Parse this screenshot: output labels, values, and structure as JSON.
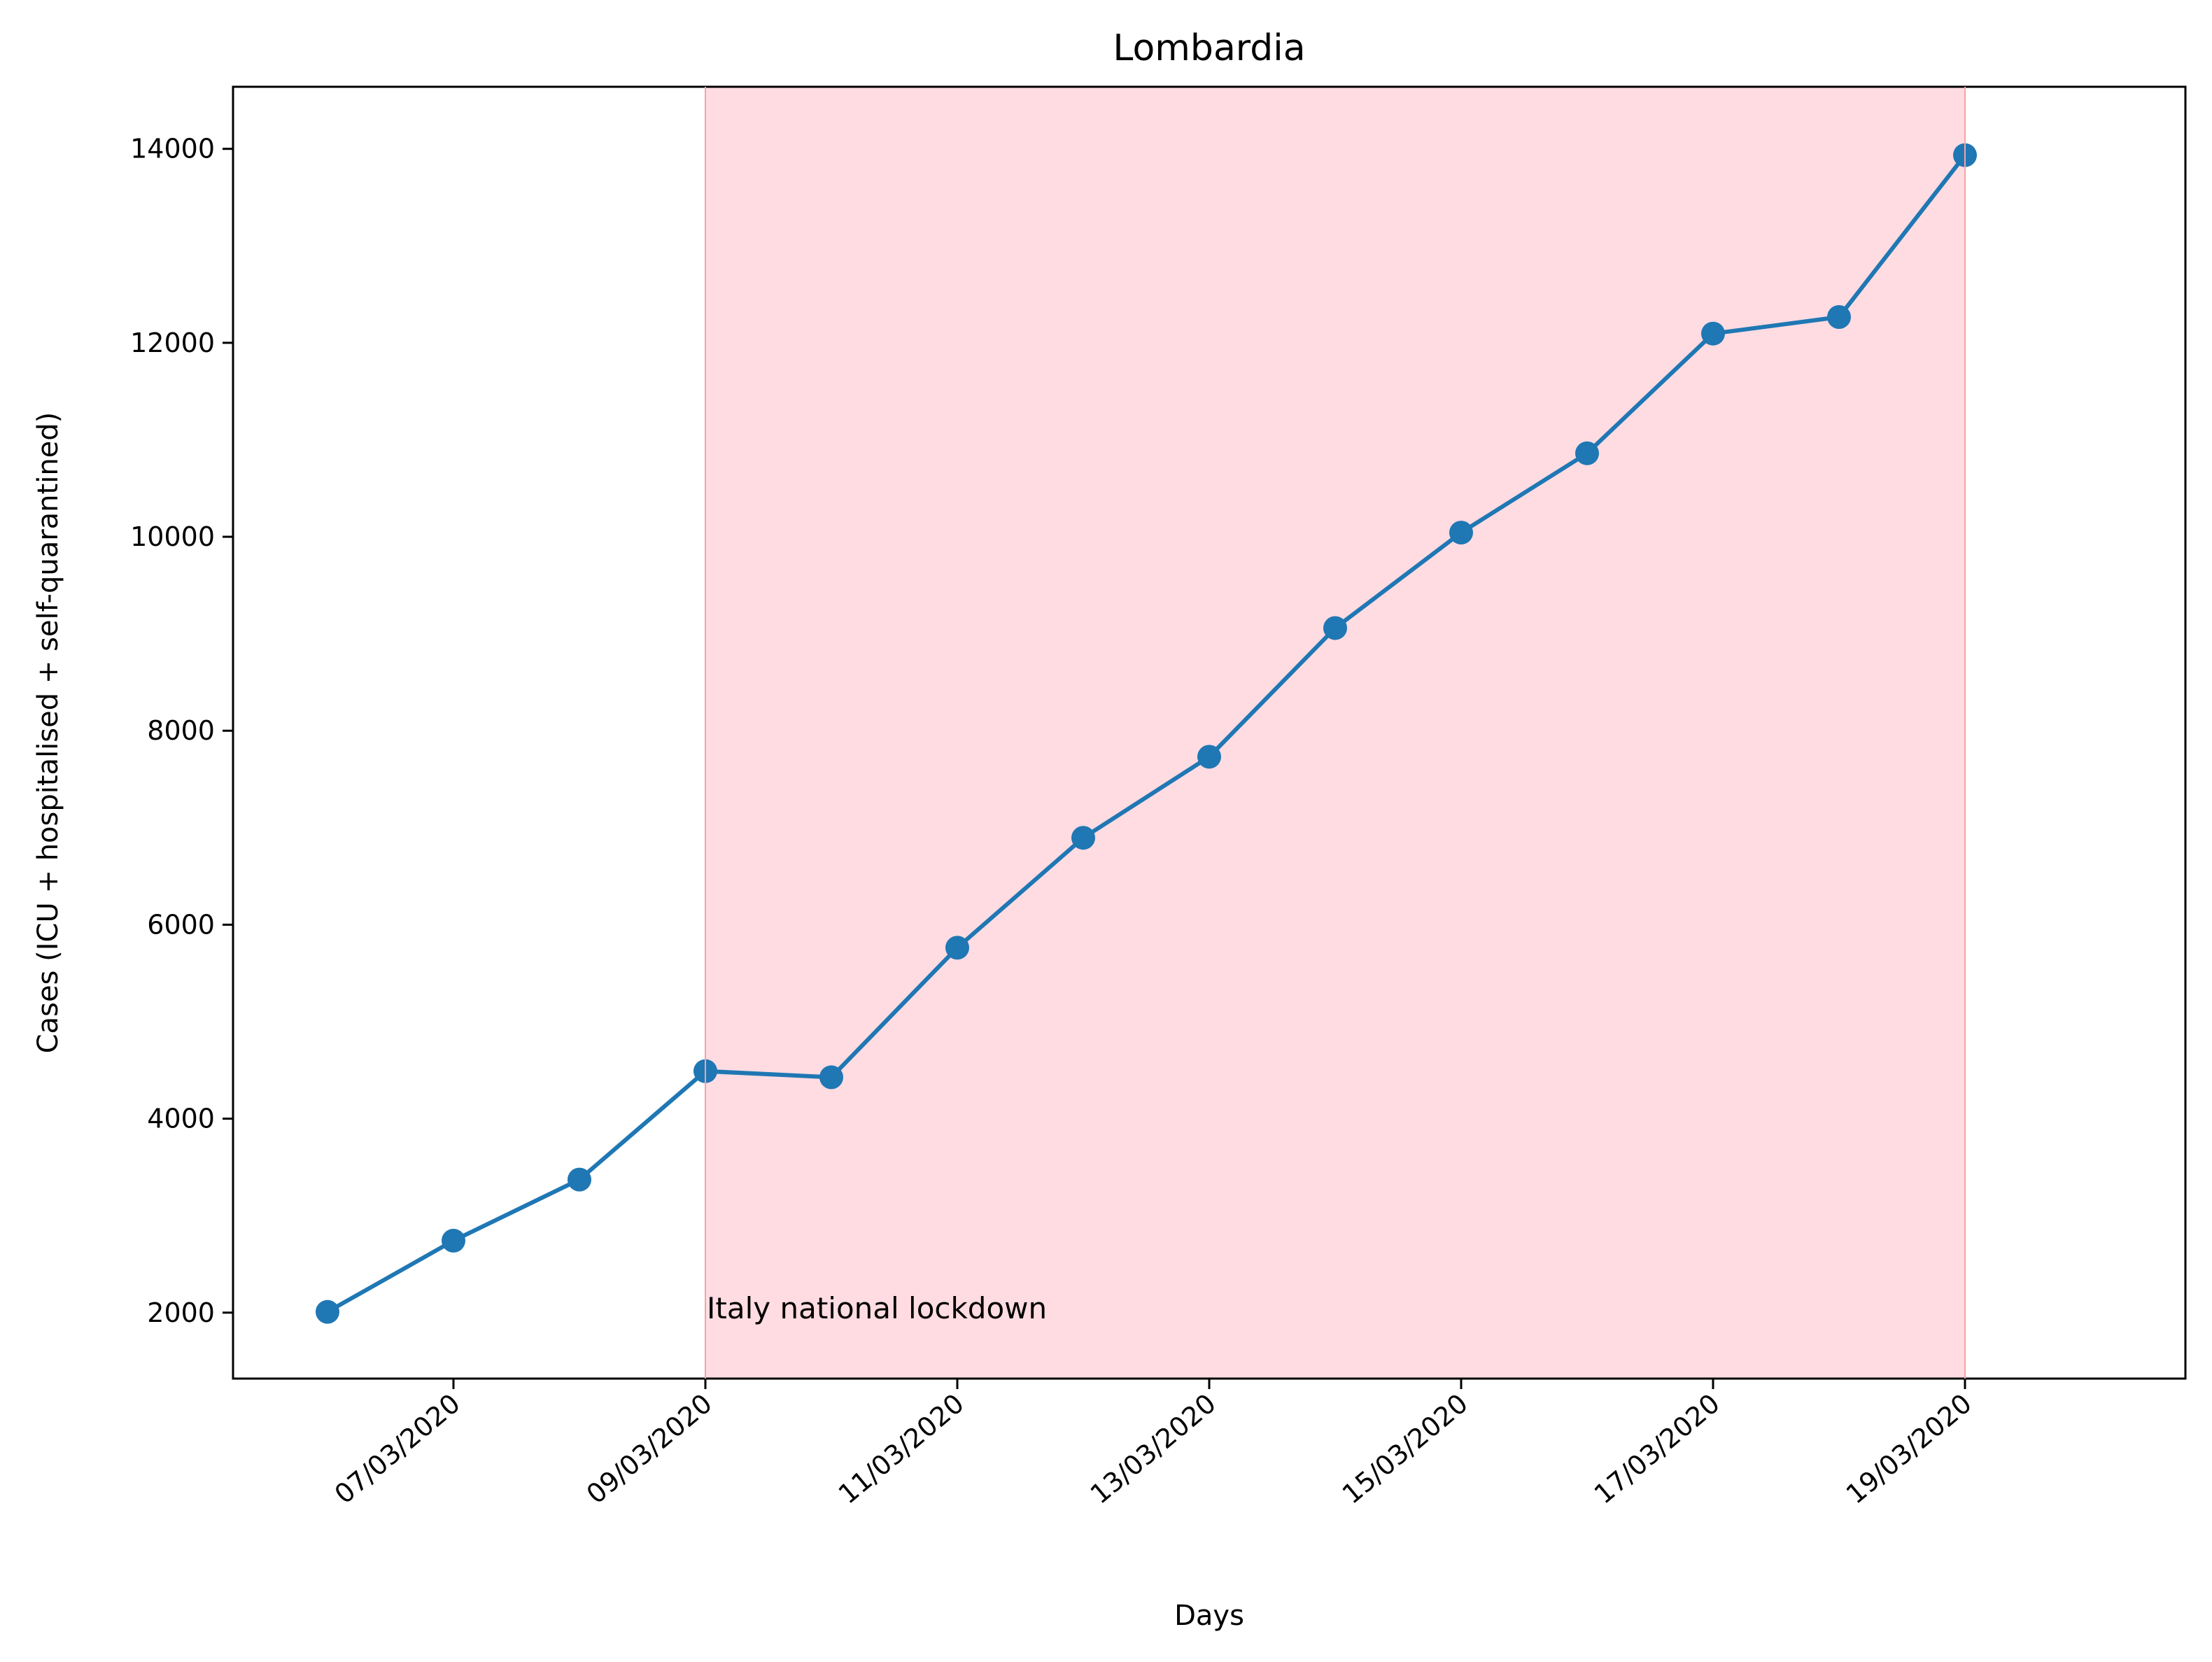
{
  "chart_data": {
    "type": "line",
    "title": "Lombardia",
    "xlabel": "Days",
    "ylabel": "Cases (ICU + hospitalised + self-quarantined)",
    "x": [
      "06/03/2020",
      "07/03/2020",
      "08/03/2020",
      "09/03/2020",
      "10/03/2020",
      "11/03/2020",
      "12/03/2020",
      "13/03/2020",
      "14/03/2020",
      "15/03/2020",
      "16/03/2020",
      "17/03/2020",
      "18/03/2020",
      "19/03/2020"
    ],
    "x_tick_labels": [
      "07/03/2020",
      "09/03/2020",
      "11/03/2020",
      "13/03/2020",
      "15/03/2020",
      "17/03/2020",
      "19/03/2020"
    ],
    "y_ticks": [
      2000,
      4000,
      6000,
      8000,
      10000,
      12000,
      14000
    ],
    "series": [
      {
        "values": [
          2008,
          2742,
          3372,
          4490,
          4427,
          5763,
          6896,
          7732,
          9059,
          10043,
          10861,
          12095,
          12266,
          13935
        ],
        "color": "#1f77b4"
      }
    ],
    "ylim": [
      1320,
      14640
    ],
    "xlim": [
      "05/03/2020 06:00",
      "20/03/2020 18:00"
    ],
    "shaded_region": {
      "from": "09/03/2020",
      "to": "19/03/2020",
      "color": "#ffc0cb",
      "label": "Italy national lockdown"
    },
    "grid": false,
    "legend": "none"
  }
}
